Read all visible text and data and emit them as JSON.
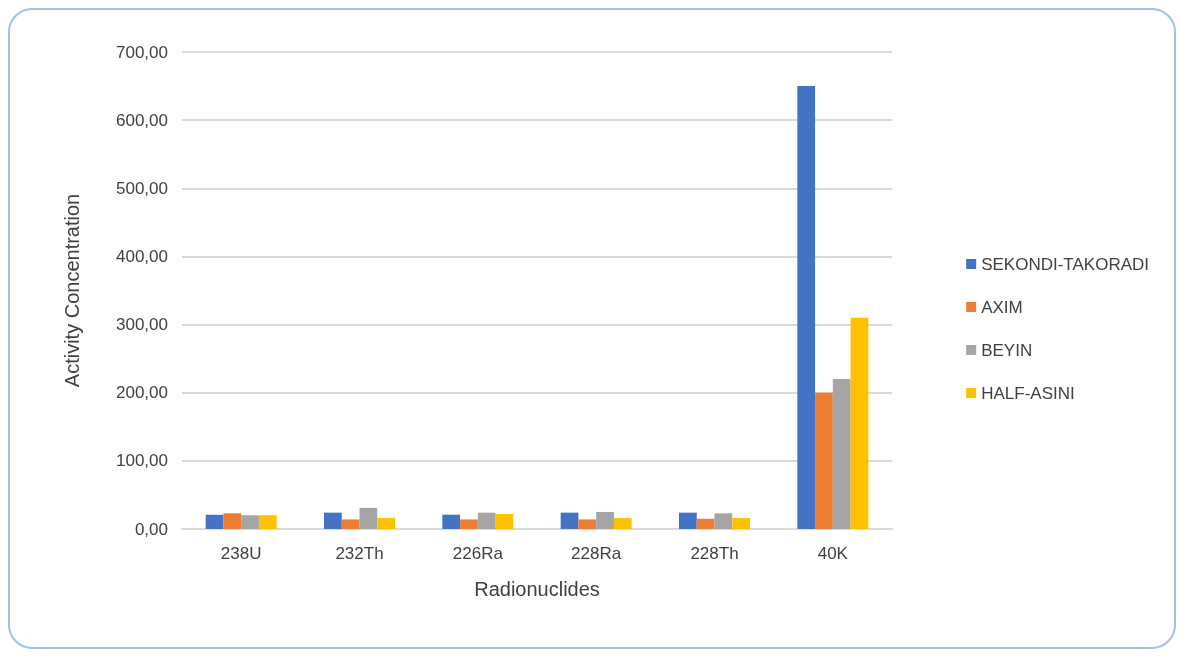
{
  "chart_data": {
    "type": "bar",
    "xlabel": "Radionuclides",
    "ylabel": "Activity Concentration",
    "categories": [
      "238U",
      "232Th",
      "226Ra",
      "228Ra",
      "228Th",
      "40K"
    ],
    "series": [
      {
        "name": "SEKONDI-TAKORADI",
        "color": "#4472c4",
        "values": [
          21,
          24,
          21,
          24,
          24,
          650
        ]
      },
      {
        "name": "AXIM",
        "color": "#ed7d31",
        "values": [
          23,
          14,
          14,
          14,
          15,
          200
        ]
      },
      {
        "name": "BEYIN",
        "color": "#a5a5a5",
        "values": [
          20,
          31,
          24,
          25,
          23,
          220
        ]
      },
      {
        "name": "HALF-ASINI",
        "color": "#ffc000",
        "values": [
          20,
          16,
          22,
          16,
          16,
          310
        ]
      }
    ],
    "ylim": [
      0,
      700
    ],
    "yticks": [
      {
        "value": 0,
        "label": "0,00"
      },
      {
        "value": 100,
        "label": "100,00"
      },
      {
        "value": 200,
        "label": "200,00"
      },
      {
        "value": 300,
        "label": "300,00"
      },
      {
        "value": 400,
        "label": "400,00"
      },
      {
        "value": 500,
        "label": "500,00"
      },
      {
        "value": 600,
        "label": "600,00"
      },
      {
        "value": 700,
        "label": "700,00"
      }
    ],
    "grid": "y",
    "legend": "right"
  }
}
